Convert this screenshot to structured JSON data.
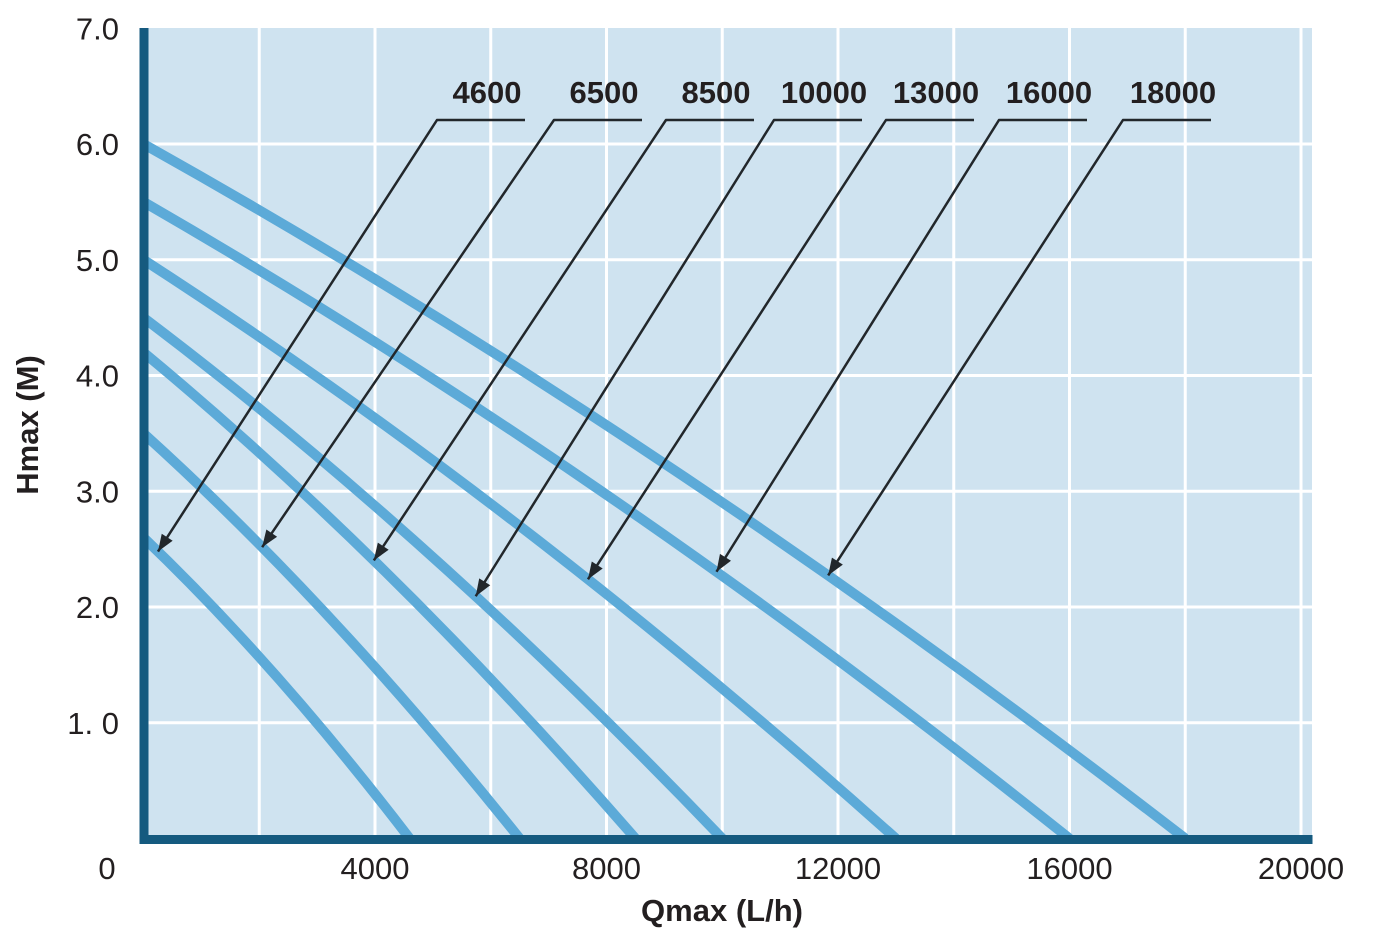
{
  "chart_data": {
    "type": "line",
    "title": "",
    "xlabel": "Qmax (L/h)",
    "ylabel": "Hmax (M)",
    "xlim": [
      0,
      20000
    ],
    "ylim": [
      0,
      7.0
    ],
    "grid": {
      "on": true,
      "x_step": 2000,
      "y_step": 1.0
    },
    "x_ticks": {
      "values": [
        0,
        4000,
        8000,
        12000,
        16000,
        20000
      ],
      "labels": [
        "0",
        "4000",
        "8000",
        "12000",
        "16000",
        "20000"
      ]
    },
    "y_ticks": {
      "values": [
        7.0,
        6.0,
        5.0,
        4.0,
        3.0,
        2.0,
        1.0
      ],
      "labels": [
        "7.0",
        "6.0",
        "5.0",
        "4.0",
        "3.0",
        "2.0",
        "1. 0"
      ]
    },
    "legend_position": "labels-with-arrows-above-plot",
    "series": [
      {
        "label": "4600",
        "hmax_m": 2.6,
        "qmax_lh": 4600,
        "points": [
          [
            0,
            2.6
          ],
          [
            2300,
            1.4
          ],
          [
            4600,
            0
          ]
        ],
        "arrow_points_at_q": 250
      },
      {
        "label": "6500",
        "hmax_m": 3.5,
        "qmax_lh": 6500,
        "points": [
          [
            0,
            3.5
          ],
          [
            3250,
            1.89
          ],
          [
            6500,
            0
          ]
        ],
        "arrow_points_at_q": 2050
      },
      {
        "label": "8500",
        "hmax_m": 4.2,
        "qmax_lh": 8500,
        "points": [
          [
            0,
            4.2
          ],
          [
            4250,
            2.27
          ],
          [
            8500,
            0
          ]
        ],
        "arrow_points_at_q": 3980
      },
      {
        "label": "10000",
        "hmax_m": 4.5,
        "qmax_lh": 10000,
        "points": [
          [
            0,
            4.5
          ],
          [
            5000,
            2.43
          ],
          [
            10000,
            0
          ]
        ],
        "arrow_points_at_q": 5740
      },
      {
        "label": "13000",
        "hmax_m": 5.0,
        "qmax_lh": 13000,
        "points": [
          [
            0,
            5.0
          ],
          [
            6500,
            2.7
          ],
          [
            13000,
            0
          ]
        ],
        "arrow_points_at_q": 7680
      },
      {
        "label": "16000",
        "hmax_m": 5.5,
        "qmax_lh": 16000,
        "points": [
          [
            0,
            5.5
          ],
          [
            8000,
            2.97
          ],
          [
            16000,
            0
          ]
        ],
        "arrow_points_at_q": 9900
      },
      {
        "label": "18000",
        "hmax_m": 6.0,
        "qmax_lh": 18000,
        "points": [
          [
            0,
            6.0
          ],
          [
            9000,
            3.24
          ],
          [
            18000,
            0
          ]
        ],
        "arrow_points_at_q": 11830
      }
    ],
    "colors": {
      "plot_background": "#cfe3f0",
      "gridline": "#ffffff",
      "curve": "#5caad8",
      "axis_line": "#155a7f",
      "series_label": "#58a8d8",
      "leader_line": "#22272b",
      "text": "#231f20"
    }
  }
}
